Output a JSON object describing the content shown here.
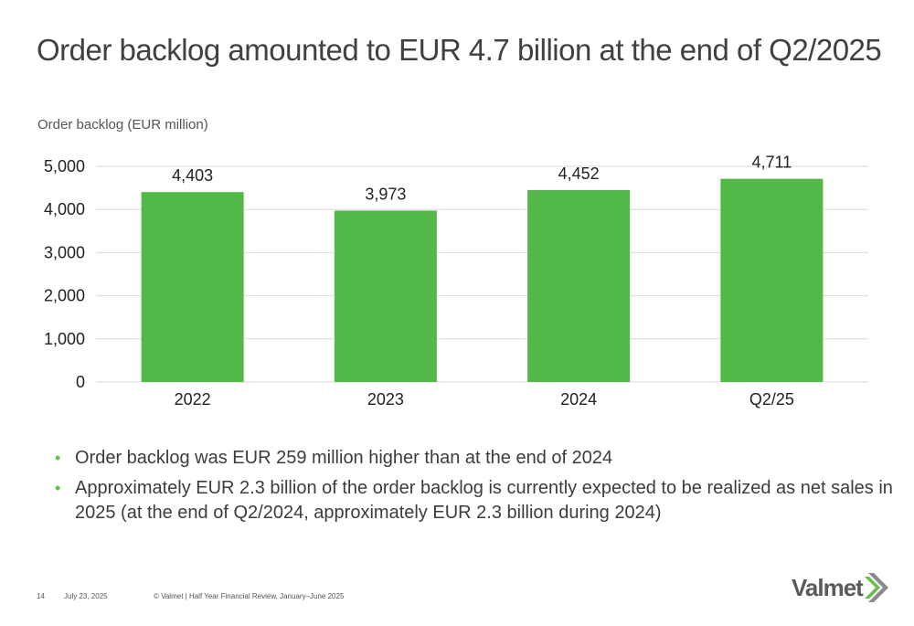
{
  "title": "Order backlog amounted to EUR 4.7 billion at the end of Q2/2025",
  "chart_label": "Order backlog (EUR million)",
  "bullets": [
    "Order backlog was EUR 259 million higher than at the end of 2024",
    "Approximately EUR 2.3 billion of the order backlog is currently expected to be realized as net sales in 2025 (at the end of Q2/2024, approximately EUR 2.3 billion during 2024)"
  ],
  "footer": {
    "page_number": "14",
    "date": "July 23, 2025",
    "copyright": "© Valmet  | Half Year Financial Review, January–June 2025"
  },
  "logo": {
    "text": "Valmet"
  },
  "colors": {
    "bar": "#52b848",
    "accent": "#64c04a",
    "gridline": "#d9d9d9",
    "text": "#3c3c3c"
  },
  "chart_data": {
    "type": "bar",
    "title": "Order backlog (EUR million)",
    "categories": [
      "2022",
      "2023",
      "2024",
      "Q2/25"
    ],
    "values": [
      4403,
      3973,
      4452,
      4711
    ],
    "value_labels": [
      "4,403",
      "3,973",
      "4,452",
      "4,711"
    ],
    "ylim": [
      0,
      5000
    ],
    "yticks": [
      0,
      1000,
      2000,
      3000,
      4000,
      5000
    ],
    "ytick_labels": [
      "0",
      "1,000",
      "2,000",
      "3,000",
      "4,000",
      "5,000"
    ],
    "grid": true,
    "xlabel": "",
    "ylabel": ""
  }
}
